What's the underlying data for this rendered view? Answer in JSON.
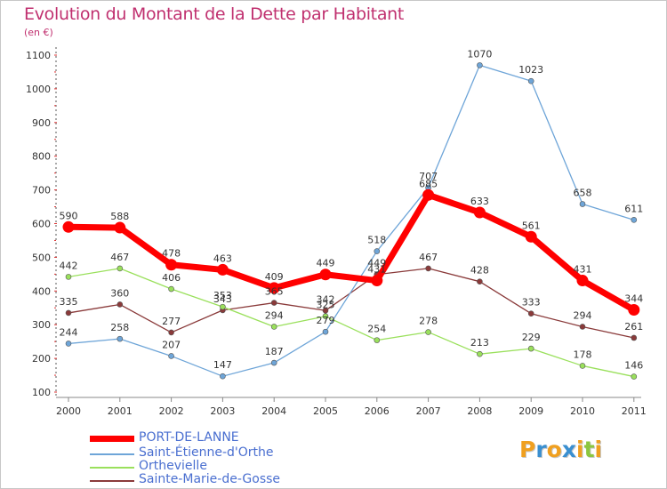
{
  "chart_data": {
    "type": "line",
    "title": "Evolution du Montant de la Dette par Habitant",
    "unit_label": "(en €)",
    "xlabel": "",
    "ylabel": "",
    "ylim": [
      100,
      1100
    ],
    "y_ticks": [
      "100",
      "200",
      "300",
      "400",
      "500",
      "600",
      "700",
      "800",
      "900",
      "1000",
      "1100"
    ],
    "categories": [
      "2000",
      "2001",
      "2002",
      "2003",
      "2004",
      "2005",
      "2006",
      "2007",
      "2008",
      "2009",
      "2010",
      "2011"
    ],
    "grid": false,
    "legend_position": "bottom-left",
    "series": [
      {
        "name": "PORT-DE-LANNE",
        "color": "#ff0000",
        "values": [
          590,
          588,
          478,
          463,
          409,
          449,
          431,
          685,
          633,
          561,
          431,
          344
        ]
      },
      {
        "name": "Saint-Étienne-d'Orthe",
        "color": "#6ea5d8",
        "values": [
          244,
          258,
          207,
          147,
          187,
          279,
          518,
          707,
          1070,
          1023,
          658,
          611
        ]
      },
      {
        "name": "Orthevielle",
        "color": "#9ae05c",
        "values": [
          442,
          467,
          406,
          353,
          294,
          325,
          254,
          278,
          213,
          229,
          178,
          146
        ]
      },
      {
        "name": "Sainte-Marie-de-Gosse",
        "color": "#8a3a3a",
        "values": [
          335,
          360,
          277,
          343,
          365,
          342,
          449,
          467,
          428,
          333,
          294,
          261
        ]
      }
    ]
  },
  "logo": {
    "letters": [
      "P",
      "r",
      "o",
      "x",
      "i",
      "t",
      "i"
    ],
    "colors": [
      "#f0a020",
      "#3a8fd0",
      "#f0a020",
      "#3a8fd0",
      "#f0a020",
      "#8cc63f",
      "#f0a020"
    ]
  }
}
